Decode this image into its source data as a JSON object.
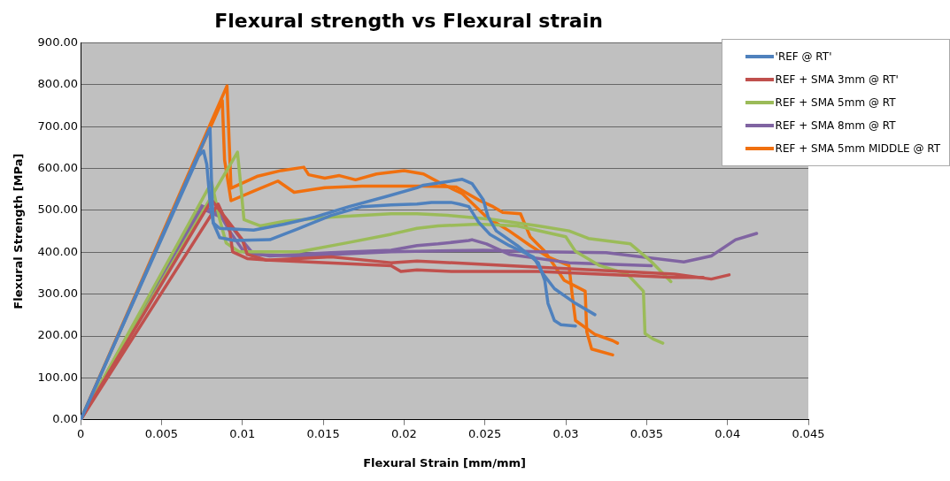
{
  "chart_data": {
    "type": "line",
    "title": "Flexural strength vs Flexural strain",
    "xlabel": "Flexural Strain [mm/mm]",
    "ylabel": "Flexural Strength [MPa]",
    "xlim": [
      0,
      0.045
    ],
    "xticks": [
      0,
      0.005,
      0.01,
      0.015,
      0.02,
      0.025,
      0.03,
      0.035,
      0.04,
      0.045
    ],
    "ylim": [
      0,
      900
    ],
    "yticks": [
      {
        "value": 0,
        "label": "0.00"
      },
      {
        "value": 100,
        "label": "100.00"
      },
      {
        "value": 200,
        "label": "200.00"
      },
      {
        "value": 300,
        "label": "300.00"
      },
      {
        "value": 400,
        "label": "400.00"
      },
      {
        "value": 500,
        "label": "500.00"
      },
      {
        "value": 600,
        "label": "600.00"
      },
      {
        "value": 700,
        "label": "700.00"
      },
      {
        "value": 800,
        "label": "800.00"
      },
      {
        "value": 900,
        "label": "900.00"
      }
    ],
    "grid": "y",
    "legend": "top right",
    "series": [
      {
        "name": "'REF @ RT'",
        "color": "#4f81bd",
        "x": [
          0,
          0.008,
          0.0081,
          0.0082,
          0.0086,
          0.0095,
          0.0117,
          0.0135,
          0.0155,
          0.0174,
          0.0192,
          0.0208,
          0.0217,
          0.0229,
          0.0234,
          0.024,
          0.0246,
          0.0253,
          0.0265,
          0.028,
          0.0286,
          0.0293,
          0.0306,
          0.0318
        ],
        "values": [
          0,
          697,
          560,
          470,
          435,
          428,
          430,
          457,
          488,
          509,
          513,
          515,
          519,
          519,
          515,
          509,
          472,
          443,
          416,
          389,
          348,
          313,
          278,
          251
        ]
      },
      {
        "color": "#4f81bd",
        "x": [
          0,
          0.0073,
          0.0076,
          0.0078,
          0.008,
          0.0082,
          0.0086,
          0.0107,
          0.0126,
          0.0145,
          0.0166,
          0.0189,
          0.0208,
          0.0212,
          0.0236,
          0.0242,
          0.0249,
          0.0252,
          0.0257,
          0.027,
          0.0283,
          0.0287,
          0.0289,
          0.0293,
          0.0297,
          0.0306
        ],
        "values": [
          0,
          630,
          642,
          610,
          520,
          470,
          457,
          453,
          467,
          484,
          509,
          533,
          554,
          560,
          574,
          564,
          525,
          484,
          451,
          416,
          375,
          333,
          278,
          237,
          227,
          224
        ]
      },
      {
        "name": "REF + SMA 3mm @ RT'",
        "color": "#c0504d",
        "x": [
          0,
          0.0081,
          0.0092,
          0.01,
          0.0103,
          0.0115,
          0.0155,
          0.0192,
          0.0208,
          0.0265,
          0.0367,
          0.039,
          0.0401
        ],
        "values": [
          0,
          525,
          470,
          430,
          395,
          381,
          389,
          375,
          379,
          368,
          348,
          336,
          346
        ]
      },
      {
        "color": "#c0504d",
        "x": [
          0,
          0.0085,
          0.0092,
          0.0094,
          0.0103,
          0.0117,
          0.0174,
          0.0192,
          0.0198,
          0.0208,
          0.023,
          0.0283,
          0.0367,
          0.0385
        ],
        "values": [
          0,
          515,
          457,
          401,
          385,
          381,
          371,
          368,
          354,
          358,
          354,
          354,
          340,
          340
        ]
      },
      {
        "name": "REF + SMA 5mm @ RT",
        "color": "#9bbb59",
        "x": [
          0,
          0.0097,
          0.0099,
          0.0101,
          0.0111,
          0.0126,
          0.0155,
          0.0192,
          0.0208,
          0.0227,
          0.0255,
          0.0283,
          0.0302,
          0.0314,
          0.034,
          0.0352,
          0.0365
        ],
        "values": [
          0,
          639,
          560,
          478,
          463,
          474,
          484,
          492,
          492,
          488,
          478,
          463,
          451,
          433,
          420,
          381,
          330
        ]
      },
      {
        "color": "#9bbb59",
        "x": [
          0,
          0.0081,
          0.0086,
          0.009,
          0.0098,
          0.0135,
          0.0164,
          0.0192,
          0.0208,
          0.0221,
          0.0246,
          0.027,
          0.03,
          0.0306,
          0.0321,
          0.0338,
          0.0348,
          0.0349,
          0.0354,
          0.036
        ],
        "values": [
          0,
          567,
          478,
          422,
          401,
          401,
          422,
          443,
          457,
          463,
          467,
          463,
          437,
          402,
          368,
          348,
          307,
          206,
          193,
          183
        ]
      },
      {
        "name": "REF + SMA 8mm @ RT",
        "color": "#8064a2",
        "x": [
          0,
          0.0074,
          0.0086,
          0.0092,
          0.0101,
          0.0117,
          0.0155,
          0.0192,
          0.0208,
          0.0221,
          0.024,
          0.0242,
          0.0251,
          0.0265,
          0.0302,
          0.0353
        ],
        "values": [
          0,
          512,
          492,
          451,
          401,
          391,
          399,
          405,
          416,
          420,
          428,
          430,
          420,
          395,
          375,
          368
        ]
      },
      {
        "color": "#8064a2",
        "x": [
          0,
          0.0075,
          0.009,
          0.0098,
          0.0107,
          0.0135,
          0.0192,
          0.0249,
          0.0283,
          0.0325,
          0.0373,
          0.039,
          0.0405,
          0.0418
        ],
        "values": [
          0,
          505,
          478,
          437,
          395,
          391,
          401,
          405,
          401,
          399,
          377,
          391,
          430,
          445
        ]
      },
      {
        "name": "REF + SMA 5mm MIDDLE @ RT",
        "color": "#f0700f",
        "x": [
          0,
          0.00905,
          0.0092,
          0.0093,
          0.0109,
          0.0124,
          0.0138,
          0.0141,
          0.0151,
          0.016,
          0.017,
          0.0183,
          0.02,
          0.0212,
          0.0223,
          0.0236,
          0.0251,
          0.0265,
          0.0278,
          0.0289,
          0.0302,
          0.0304,
          0.0306,
          0.0318,
          0.0329,
          0.0332
        ],
        "values": [
          0,
          797,
          650,
          553,
          581,
          595,
          603,
          585,
          577,
          583,
          573,
          587,
          595,
          587,
          564,
          540,
          484,
          451,
          416,
          389,
          368,
          298,
          237,
          204,
          189,
          183
        ]
      },
      {
        "color": "#f0700f",
        "x": [
          0,
          0.00876,
          0.0089,
          0.0093,
          0.0107,
          0.0122,
          0.0132,
          0.0151,
          0.0174,
          0.0212,
          0.0232,
          0.0246,
          0.0255,
          0.0261,
          0.0272,
          0.0278,
          0.0287,
          0.0299,
          0.0312,
          0.0313,
          0.0316,
          0.0329
        ],
        "values": [
          0,
          762,
          620,
          523,
          546,
          570,
          543,
          554,
          558,
          558,
          556,
          525,
          509,
          495,
          492,
          437,
          402,
          333,
          307,
          210,
          169,
          155
        ]
      }
    ]
  }
}
